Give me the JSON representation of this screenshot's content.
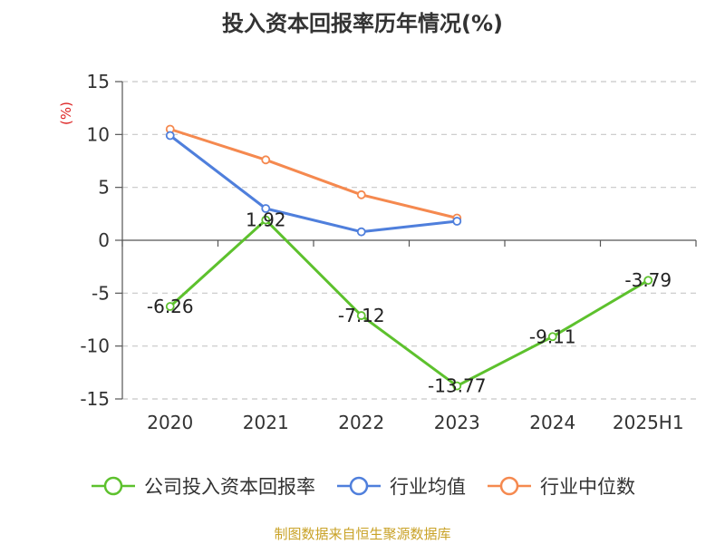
{
  "chart_data": {
    "type": "line",
    "title": "投入资本回报率历年情况(%)",
    "ylabel": "(%)",
    "categories": [
      "2020",
      "2021",
      "2022",
      "2023",
      "2024",
      "2025H1"
    ],
    "ylim": [
      -15,
      15
    ],
    "yticks": [
      15,
      10,
      5,
      0,
      -5,
      -10,
      -15
    ],
    "grid": true,
    "legend_position": "bottom",
    "series": [
      {
        "name": "公司投入资本回报率",
        "color": "#5dc12d",
        "values": [
          -6.26,
          1.92,
          -7.12,
          -13.77,
          -9.11,
          -3.79
        ],
        "labels": [
          "-6.26",
          "1.92",
          "-7.12",
          "-13.77",
          "-9.11",
          "-3.79"
        ]
      },
      {
        "name": "行业均值",
        "color": "#4f7fdc",
        "values": [
          9.9,
          3.0,
          0.8,
          1.8,
          null,
          null
        ]
      },
      {
        "name": "行业中位数",
        "color": "#f5894f",
        "values": [
          10.5,
          7.6,
          4.3,
          2.1,
          null,
          null
        ]
      }
    ]
  },
  "source": "制图数据来自恒生聚源数据库"
}
